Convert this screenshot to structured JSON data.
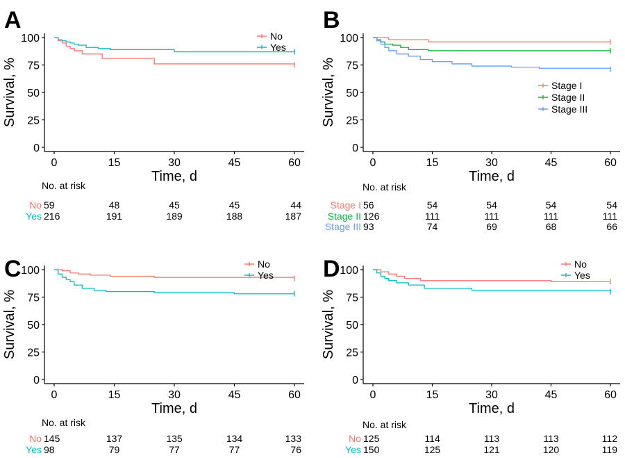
{
  "figure": {
    "colors": {
      "red": "#F8766D",
      "teal": "#00BFC4",
      "green": "#00BA38",
      "blue": "#619CFF",
      "black": "#000000"
    },
    "risk_table_title": "No. at risk"
  },
  "chart_data": [
    {
      "panel": "A",
      "type": "line",
      "xlabel": "Time, d",
      "ylabel": "Survival, %",
      "xlim": [
        0,
        60
      ],
      "ylim": [
        0,
        100
      ],
      "xticks": [
        0,
        15,
        30,
        45,
        60
      ],
      "yticks": [
        0,
        25,
        50,
        75,
        100
      ],
      "grid": false,
      "legend": "top-right",
      "series": [
        {
          "name": "No",
          "color": "#F8766D",
          "x": [
            0,
            1,
            2,
            3,
            4,
            5,
            7,
            12,
            25,
            60
          ],
          "y": [
            100,
            97,
            95,
            92,
            90,
            88,
            85,
            81,
            76,
            75
          ]
        },
        {
          "name": "Yes",
          "color": "#00BFC4",
          "x": [
            0,
            1,
            2,
            3,
            4,
            5,
            6,
            8,
            11,
            14,
            30,
            60
          ],
          "y": [
            100,
            98,
            97,
            96,
            95,
            94,
            93,
            91,
            90,
            89,
            87,
            87
          ]
        }
      ],
      "risk_table": {
        "times": [
          0,
          15,
          30,
          45,
          60
        ],
        "rows": [
          {
            "name": "No",
            "color": "#F8766D",
            "values": [
              59,
              48,
              45,
              45,
              44
            ]
          },
          {
            "name": "Yes",
            "color": "#00BFC4",
            "values": [
              216,
              191,
              189,
              188,
              187
            ]
          }
        ]
      }
    },
    {
      "panel": "B",
      "type": "line",
      "xlabel": "Time, d",
      "ylabel": "Survival, %",
      "xlim": [
        0,
        60
      ],
      "ylim": [
        0,
        100
      ],
      "xticks": [
        0,
        15,
        30,
        45,
        60
      ],
      "yticks": [
        0,
        25,
        50,
        75,
        100
      ],
      "grid": false,
      "legend": "right",
      "series": [
        {
          "name": "Stage I",
          "color": "#F8766D",
          "x": [
            0,
            4,
            14,
            60
          ],
          "y": [
            100,
            98,
            96,
            96
          ]
        },
        {
          "name": "Stage II",
          "color": "#00BA38",
          "x": [
            0,
            1,
            2,
            3,
            5,
            7,
            9,
            14,
            60
          ],
          "y": [
            100,
            98,
            96,
            94,
            93,
            91,
            89,
            88,
            88
          ]
        },
        {
          "name": "Stage III",
          "color": "#619CFF",
          "x": [
            0,
            1,
            2,
            3,
            4,
            6,
            9,
            12,
            15,
            20,
            25,
            35,
            42,
            60
          ],
          "y": [
            100,
            97,
            94,
            91,
            88,
            85,
            83,
            80,
            78,
            76,
            74,
            73,
            72,
            71
          ]
        }
      ],
      "risk_table": {
        "times": [
          0,
          15,
          30,
          45,
          60
        ],
        "rows": [
          {
            "name": "Stage I",
            "color": "#F8766D",
            "values": [
              56,
              54,
              54,
              54,
              54
            ]
          },
          {
            "name": "Stage II",
            "color": "#00BA38",
            "values": [
              126,
              111,
              111,
              111,
              111
            ]
          },
          {
            "name": "Stage III",
            "color": "#619CFF",
            "values": [
              93,
              74,
              69,
              68,
              66
            ]
          }
        ]
      }
    },
    {
      "panel": "C",
      "type": "line",
      "xlabel": "Time, d",
      "ylabel": "Survival, %",
      "xlim": [
        0,
        60
      ],
      "ylim": [
        0,
        100
      ],
      "xticks": [
        0,
        15,
        30,
        45,
        60
      ],
      "yticks": [
        0,
        25,
        50,
        75,
        100
      ],
      "grid": false,
      "legend": "top-right",
      "series": [
        {
          "name": "No",
          "color": "#F8766D",
          "x": [
            0,
            2,
            4,
            6,
            9,
            14,
            25,
            60
          ],
          "y": [
            100,
            99,
            97,
            96,
            95,
            94,
            93,
            92
          ]
        },
        {
          "name": "Yes",
          "color": "#00BFC4",
          "x": [
            0,
            1,
            2,
            3,
            4,
            5,
            7,
            10,
            13,
            25,
            45,
            60
          ],
          "y": [
            100,
            96,
            93,
            91,
            89,
            86,
            83,
            81,
            80,
            79,
            78,
            78
          ]
        }
      ],
      "risk_table": {
        "times": [
          0,
          15,
          30,
          45,
          60
        ],
        "rows": [
          {
            "name": "No",
            "color": "#F8766D",
            "values": [
              145,
              137,
              135,
              134,
              133
            ]
          },
          {
            "name": "Yes",
            "color": "#00BFC4",
            "values": [
              98,
              79,
              77,
              77,
              76
            ]
          }
        ]
      }
    },
    {
      "panel": "D",
      "type": "line",
      "xlabel": "Time, d",
      "ylabel": "Survival, %",
      "xlim": [
        0,
        60
      ],
      "ylim": [
        0,
        100
      ],
      "xticks": [
        0,
        15,
        30,
        45,
        60
      ],
      "yticks": [
        0,
        25,
        50,
        75,
        100
      ],
      "grid": false,
      "legend": "top-right",
      "series": [
        {
          "name": "No",
          "color": "#F8766D",
          "x": [
            0,
            2,
            4,
            6,
            8,
            12,
            45,
            60
          ],
          "y": [
            100,
            98,
            96,
            94,
            92,
            90,
            89,
            89
          ]
        },
        {
          "name": "Yes",
          "color": "#00BFC4",
          "x": [
            0,
            1,
            2,
            3,
            4,
            6,
            9,
            13,
            25,
            60
          ],
          "y": [
            100,
            97,
            94,
            92,
            90,
            88,
            86,
            83,
            81,
            80
          ]
        }
      ],
      "risk_table": {
        "times": [
          0,
          15,
          30,
          45,
          60
        ],
        "rows": [
          {
            "name": "No",
            "color": "#F8766D",
            "values": [
              125,
              114,
              113,
              113,
              112
            ]
          },
          {
            "name": "Yes",
            "color": "#00BFC4",
            "values": [
              150,
              125,
              121,
              120,
              119
            ]
          }
        ]
      }
    }
  ]
}
